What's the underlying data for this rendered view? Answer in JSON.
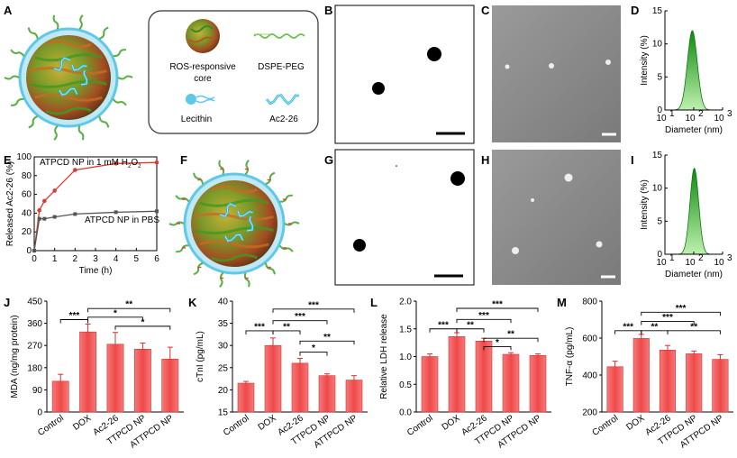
{
  "panel_labels": {
    "A": "A",
    "B": "B",
    "C": "C",
    "D": "D",
    "E": "E",
    "F": "F",
    "G": "G",
    "H": "H",
    "I": "I",
    "J": "J",
    "K": "K",
    "L": "L",
    "M": "M"
  },
  "legend_box": {
    "core": "ROS-responsive core",
    "core_line1": "ROS-responsive",
    "core_line2": "core",
    "peg": "DSPE-PEG",
    "lecithin": "Lecithin",
    "peptide": "Ac2-26"
  },
  "colors": {
    "bar": "#f05a5a",
    "bar_dark": "#d83030",
    "red_line": "#d93a32",
    "gray_line": "#555555",
    "peak": "#1a9a1a",
    "sem_bg": "#8a8a8a",
    "micelle": "#5fc8e8"
  },
  "chart_data": [
    {
      "id": "D",
      "type": "area",
      "xlabel": "Diameter (nm)",
      "ylabel": "Intensity (%)",
      "yticks": [
        "0",
        "5",
        "10",
        "15"
      ],
      "ylim": [
        0,
        15
      ],
      "xticks": [
        "10",
        "10",
        "10"
      ],
      "xtick_sup": [
        "1",
        "2",
        "3"
      ],
      "xlog_range": [
        1,
        3
      ],
      "peak_center_log": 1.95,
      "peak_height": 12,
      "peak_width_log": 0.17
    },
    {
      "id": "I",
      "type": "area",
      "xlabel": "Diameter (nm)",
      "ylabel": "Intensity (%)",
      "yticks": [
        "0",
        "5",
        "10",
        "15"
      ],
      "ylim": [
        0,
        15
      ],
      "xticks": [
        "10",
        "10",
        "10"
      ],
      "xtick_sup": [
        "1",
        "2",
        "3"
      ],
      "xlog_range": [
        1,
        3
      ],
      "peak_center_log": 2.02,
      "peak_height": 13,
      "peak_width_log": 0.15
    },
    {
      "id": "E",
      "type": "line",
      "xlabel": "Time (h)",
      "ylabel": "Released Ac2-26 (%)",
      "xlim": [
        0,
        6
      ],
      "ylim": [
        0,
        100
      ],
      "xticks": [
        "0",
        "1",
        "2",
        "3",
        "4",
        "5",
        "6"
      ],
      "yticks": [
        "0",
        "20",
        "40",
        "60",
        "80",
        "100"
      ],
      "series": [
        {
          "name": "ATPCD NP in 1 mM H2O2",
          "label_main": "ATPCD NP in 1 mM H",
          "label_sub": "2",
          "label_mid": "O",
          "label_sub2": "2",
          "x": [
            0,
            0.25,
            0.5,
            1,
            2,
            4,
            6
          ],
          "y": [
            0,
            43,
            53,
            64,
            86,
            93,
            94
          ]
        },
        {
          "name": "ATPCD NP in PBS",
          "x": [
            0,
            0.25,
            0.5,
            1,
            2,
            4,
            6
          ],
          "y": [
            0,
            34,
            34,
            36,
            39,
            41,
            42
          ]
        }
      ]
    },
    {
      "id": "J",
      "type": "bar",
      "ylabel": "MDA (ng/mg protein)",
      "categories": [
        "Control",
        "DOX",
        "Ac2-26",
        "TTPCD NP",
        "ATTPCD NP"
      ],
      "values": [
        125,
        325,
        275,
        255,
        215
      ],
      "errors": [
        28,
        32,
        48,
        25,
        48
      ],
      "ylim": [
        0,
        450
      ],
      "yticks": [
        "0",
        "90",
        "180",
        "270",
        "360",
        "450"
      ],
      "significance": [
        {
          "from": 0,
          "to": 1,
          "label": "***",
          "y": 375
        },
        {
          "from": 1,
          "to": 4,
          "label": "**",
          "y": 420
        },
        {
          "from": 1,
          "to": 3,
          "label": "*",
          "y": 385
        },
        {
          "from": 2,
          "to": 4,
          "label": "*",
          "y": 348
        }
      ]
    },
    {
      "id": "K",
      "type": "bar",
      "ylabel": "cTnI (pg/mL)",
      "categories": [
        "Control",
        "DOX",
        "Ac2-26",
        "TTPCD NP",
        "ATTPCD NP"
      ],
      "values": [
        21.5,
        30,
        26,
        23.2,
        22.2
      ],
      "errors": [
        0.4,
        1.7,
        1.1,
        0.4,
        1.0
      ],
      "ylim": [
        15,
        40
      ],
      "yticks": [
        "15",
        "20",
        "25",
        "30",
        "35",
        "40"
      ],
      "significance": [
        {
          "from": 0,
          "to": 1,
          "label": "***",
          "y": 33.3
        },
        {
          "from": 1,
          "to": 4,
          "label": "***",
          "y": 38.2
        },
        {
          "from": 1,
          "to": 3,
          "label": "***",
          "y": 35.6
        },
        {
          "from": 1,
          "to": 2,
          "label": "**",
          "y": 33.3
        },
        {
          "from": 2,
          "to": 3,
          "label": "*",
          "y": 28.5
        },
        {
          "from": 2,
          "to": 4,
          "label": "**",
          "y": 31.0
        }
      ]
    },
    {
      "id": "L",
      "type": "bar",
      "ylabel": "Relative LDH release",
      "categories": [
        "Control",
        "DOX",
        "Ac2-26",
        "TTPCD NP",
        "ATTPCD NP"
      ],
      "values": [
        1.0,
        1.36,
        1.28,
        1.04,
        1.02
      ],
      "errors": [
        0.05,
        0.07,
        0.05,
        0.03,
        0.03
      ],
      "ylim": [
        0,
        2.0
      ],
      "yticks": [
        "0.0",
        "0.5",
        "1.0",
        "1.5",
        "2.0"
      ],
      "significance": [
        {
          "from": 0,
          "to": 1,
          "label": "***",
          "y": 1.5
        },
        {
          "from": 1,
          "to": 4,
          "label": "***",
          "y": 1.87
        },
        {
          "from": 1,
          "to": 3,
          "label": "***",
          "y": 1.67
        },
        {
          "from": 1,
          "to": 2,
          "label": "**",
          "y": 1.5
        },
        {
          "from": 2,
          "to": 3,
          "label": "*",
          "y": 1.18
        },
        {
          "from": 2,
          "to": 4,
          "label": "**",
          "y": 1.33
        }
      ]
    },
    {
      "id": "M",
      "type": "bar",
      "ylabel": "TNF-α (pg/mL)",
      "categories": [
        "Control",
        "DOX",
        "Ac2-26",
        "TTPCD NP",
        "ATTPCD NP"
      ],
      "values": [
        445,
        598,
        535,
        515,
        485
      ],
      "errors": [
        30,
        22,
        25,
        15,
        25
      ],
      "ylim": [
        200,
        800
      ],
      "yticks": [
        "200",
        "400",
        "600",
        "800"
      ],
      "significance": [
        {
          "from": 0,
          "to": 1,
          "label": "***",
          "y": 640
        },
        {
          "from": 1,
          "to": 4,
          "label": "***",
          "y": 740
        },
        {
          "from": 1,
          "to": 3,
          "label": "***",
          "y": 690
        },
        {
          "from": 1,
          "to": 2,
          "label": "**",
          "y": 640
        },
        {
          "from": 2,
          "to": 4,
          "label": "**",
          "y": 640
        }
      ]
    }
  ]
}
